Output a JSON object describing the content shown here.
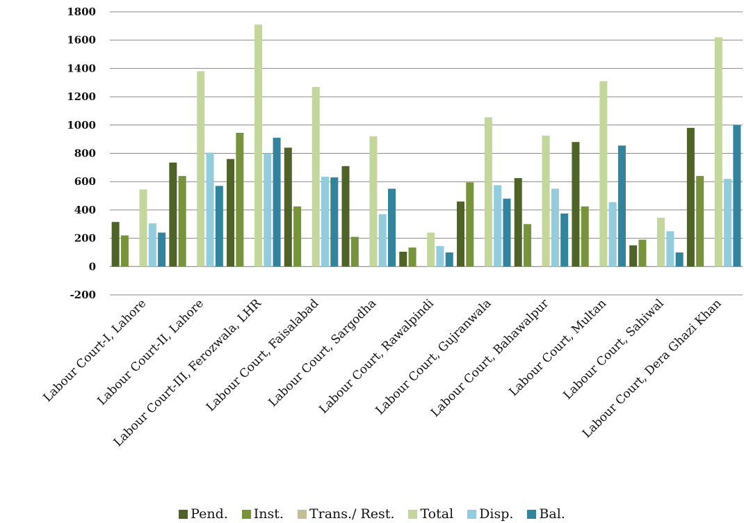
{
  "chart_data": {
    "type": "bar",
    "title": "",
    "xlabel": "",
    "ylabel": "",
    "ylim": [
      -200,
      1800
    ],
    "yticks": [
      -200,
      0,
      200,
      400,
      600,
      800,
      1000,
      1200,
      1400,
      1600,
      1800
    ],
    "grid": true,
    "legend": "bottom",
    "categories": [
      "Labour Court-I, Lahore",
      "Labour Court-II, Lahore",
      "Labour Court-III, Ferozwala, LHR",
      "Labour Court, Faisalabad",
      "Labour Court, Sargodha",
      "Labour Court, Rawalpindi",
      "Labour Court, Gujranwala",
      "Labour Court, Bahawalpur",
      "Labour Court, Multan",
      "Labour Court, Sahiwal",
      "Labour Court, Dera Ghazi Khan"
    ],
    "series": [
      {
        "name": "Pend.",
        "color": "#4f6228",
        "values": [
          315,
          735,
          760,
          840,
          710,
          105,
          460,
          625,
          880,
          150,
          980
        ]
      },
      {
        "name": "Inst.",
        "color": "#77933c",
        "values": [
          220,
          640,
          945,
          425,
          210,
          135,
          595,
          300,
          425,
          190,
          640
        ]
      },
      {
        "name": "Trans./ Rest.",
        "color": "#c4bd97",
        "values": [
          5,
          0,
          0,
          0,
          0,
          0,
          0,
          0,
          0,
          0,
          0
        ]
      },
      {
        "name": "Total",
        "color": "#c3d69b",
        "values": [
          545,
          1380,
          1710,
          1270,
          920,
          240,
          1055,
          925,
          1310,
          345,
          1620
        ]
      },
      {
        "name": "Disp.",
        "color": "#93cddd",
        "values": [
          305,
          805,
          800,
          635,
          370,
          145,
          575,
          550,
          455,
          250,
          620
        ]
      },
      {
        "name": "Bal.",
        "color": "#31849b",
        "values": [
          240,
          570,
          910,
          630,
          550,
          100,
          480,
          375,
          855,
          100,
          1000
        ]
      }
    ]
  }
}
